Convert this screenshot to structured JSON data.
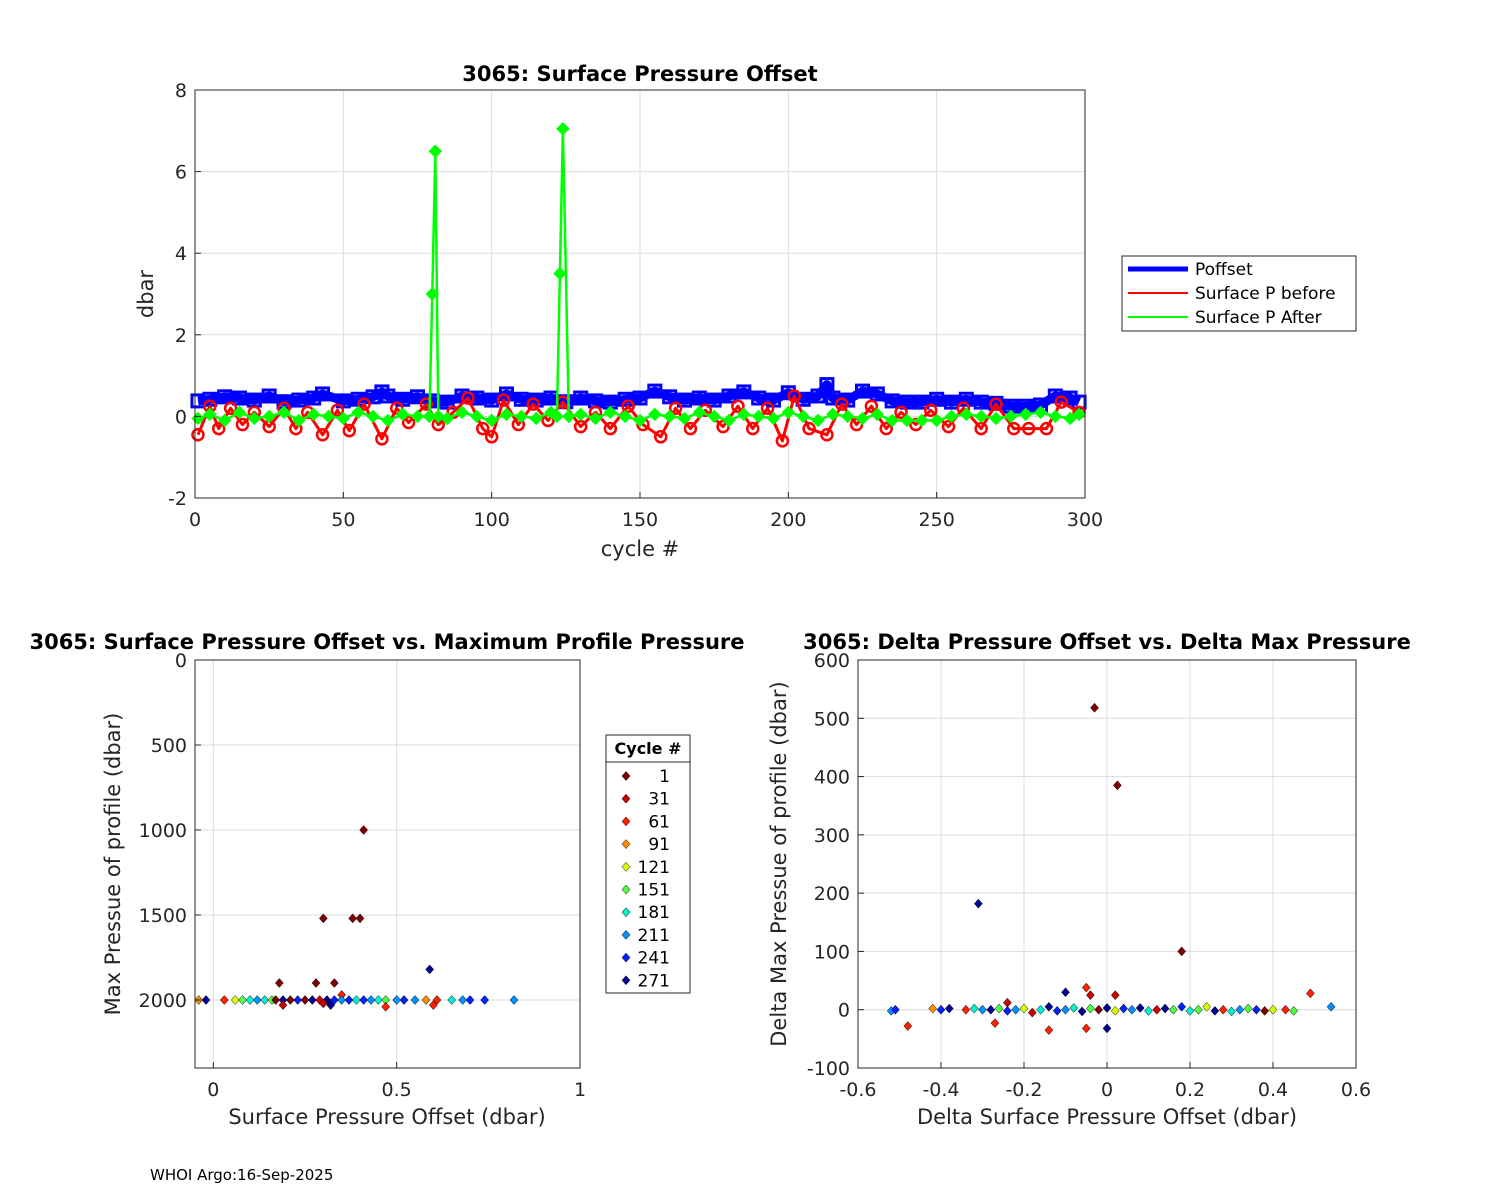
{
  "footer": "WHOI Argo:16-Sep-2025",
  "chart_data": [
    {
      "type": "line",
      "title": "3065: Surface Pressure Offset",
      "xlabel": "cycle #",
      "ylabel": "dbar",
      "xlim": [
        0,
        300
      ],
      "ylim": [
        -2,
        8
      ],
      "xticks": [
        "0",
        "50",
        "100",
        "150",
        "200",
        "250",
        "300"
      ],
      "yticks": [
        "-2",
        "0",
        "2",
        "4",
        "6",
        "8"
      ],
      "grid": true,
      "legend_position": "outside-right",
      "colors": {
        "poffset": "#0000ff",
        "before": "#ff0000",
        "after": "#00ff00"
      },
      "series": [
        {
          "name": "Poffset",
          "x": [
            1,
            5,
            10,
            15,
            20,
            25,
            30,
            35,
            40,
            43,
            50,
            55,
            60,
            63,
            65,
            70,
            75,
            80,
            85,
            90,
            95,
            100,
            105,
            110,
            115,
            120,
            125,
            130,
            135,
            140,
            145,
            150,
            155,
            160,
            165,
            170,
            175,
            180,
            185,
            190,
            195,
            200,
            205,
            210,
            213,
            215,
            220,
            225,
            230,
            235,
            240,
            245,
            250,
            255,
            260,
            265,
            270,
            275,
            280,
            285,
            290,
            295,
            298
          ],
          "values": [
            0.38,
            0.42,
            0.48,
            0.45,
            0.4,
            0.5,
            0.36,
            0.4,
            0.45,
            0.55,
            0.38,
            0.42,
            0.48,
            0.6,
            0.5,
            0.42,
            0.48,
            0.38,
            0.35,
            0.5,
            0.45,
            0.4,
            0.55,
            0.42,
            0.4,
            0.45,
            0.36,
            0.45,
            0.38,
            0.35,
            0.42,
            0.45,
            0.62,
            0.48,
            0.4,
            0.45,
            0.4,
            0.5,
            0.6,
            0.45,
            0.4,
            0.58,
            0.42,
            0.5,
            0.78,
            0.45,
            0.4,
            0.62,
            0.55,
            0.38,
            0.35,
            0.35,
            0.42,
            0.35,
            0.42,
            0.35,
            0.32,
            0.25,
            0.25,
            0.28,
            0.5,
            0.45,
            0.35
          ]
        },
        {
          "name": "Surface P before",
          "x": [
            1,
            5,
            8,
            12,
            16,
            20,
            25,
            30,
            34,
            38,
            43,
            48,
            52,
            57,
            63,
            68,
            72,
            78,
            82,
            87,
            92,
            97,
            100,
            104,
            109,
            114,
            119,
            124,
            130,
            135,
            140,
            146,
            151,
            157,
            162,
            167,
            172,
            178,
            183,
            188,
            193,
            198,
            202,
            207,
            213,
            218,
            223,
            228,
            233,
            238,
            243,
            248,
            254,
            259,
            265,
            270,
            276,
            281,
            287,
            292,
            298
          ],
          "values": [
            -0.45,
            0.25,
            -0.3,
            0.2,
            -0.2,
            0.1,
            -0.25,
            0.2,
            -0.3,
            0.1,
            -0.45,
            0.15,
            -0.35,
            0.3,
            -0.55,
            0.2,
            -0.15,
            0.3,
            -0.2,
            0.1,
            0.45,
            -0.3,
            -0.5,
            0.4,
            -0.2,
            0.3,
            -0.1,
            0.35,
            -0.25,
            0.1,
            -0.3,
            0.25,
            -0.2,
            -0.5,
            0.2,
            -0.3,
            0.15,
            -0.25,
            0.25,
            -0.3,
            0.2,
            -0.6,
            0.5,
            -0.3,
            -0.45,
            0.3,
            -0.2,
            0.25,
            -0.3,
            0.1,
            -0.2,
            0.15,
            -0.25,
            0.2,
            -0.3,
            0.3,
            -0.3,
            -0.3,
            -0.3,
            0.35,
            0.1
          ]
        },
        {
          "name": "Surface P After",
          "x": [
            1,
            5,
            10,
            15,
            20,
            25,
            30,
            35,
            40,
            45,
            50,
            55,
            60,
            65,
            70,
            75,
            79,
            80,
            81,
            82,
            85,
            90,
            95,
            100,
            105,
            110,
            115,
            120,
            122,
            123,
            124,
            126,
            130,
            135,
            140,
            145,
            150,
            155,
            160,
            165,
            170,
            175,
            180,
            185,
            190,
            195,
            200,
            205,
            210,
            215,
            220,
            225,
            230,
            235,
            240,
            245,
            250,
            255,
            260,
            265,
            270,
            275,
            280,
            285,
            290,
            295,
            298
          ],
          "values": [
            -0.05,
            0.05,
            -0.1,
            0.1,
            -0.05,
            0.0,
            0.1,
            -0.1,
            0.05,
            0.0,
            -0.05,
            0.1,
            0.0,
            -0.1,
            0.05,
            0.0,
            0.0,
            3.0,
            6.5,
            0.0,
            -0.05,
            0.1,
            0.0,
            -0.1,
            0.05,
            0.0,
            -0.05,
            0.1,
            0.0,
            3.5,
            7.05,
            0.0,
            0.05,
            -0.05,
            0.1,
            0.0,
            -0.1,
            0.05,
            0.0,
            -0.05,
            0.1,
            0.0,
            -0.1,
            0.05,
            0.0,
            -0.05,
            0.1,
            0.0,
            -0.1,
            0.05,
            0.0,
            -0.05,
            0.05,
            -0.1,
            -0.1,
            -0.1,
            -0.1,
            0.0,
            0.05,
            0.0,
            -0.05,
            0.0,
            0.05,
            0.1,
            0.0,
            -0.05,
            0.05
          ]
        }
      ]
    },
    {
      "type": "scatter",
      "title": "3065: Surface Pressure Offset vs. Maximum Profile Pressure",
      "xlabel": "Surface Pressure Offset (dbar)",
      "ylabel": "Max Pressue of profile (dbar)",
      "xlim": [
        -0.05,
        1
      ],
      "ylim": [
        0,
        2400
      ],
      "y_reversed": true,
      "xticks": [
        "0",
        "0.5",
        "1"
      ],
      "yticks": [
        "0",
        "500",
        "1000",
        "1500",
        "2000"
      ],
      "grid": true,
      "legend_title": "Cycle #",
      "legend_position": "outside-right",
      "legend": [
        {
          "label": "1",
          "color": "#800000"
        },
        {
          "label": "31",
          "color": "#cc0000"
        },
        {
          "label": "61",
          "color": "#ff2000"
        },
        {
          "label": "91",
          "color": "#ff8c00"
        },
        {
          "label": "121",
          "color": "#d8ff00"
        },
        {
          "label": "151",
          "color": "#50ff40"
        },
        {
          "label": "181",
          "color": "#00f0d0"
        },
        {
          "label": "211",
          "color": "#0090ff"
        },
        {
          "label": "241",
          "color": "#0020ff"
        },
        {
          "label": "271",
          "color": "#000090"
        }
      ],
      "points": [
        {
          "x": 0.41,
          "y": 1000,
          "c": 0
        },
        {
          "x": 0.3,
          "y": 1520,
          "c": 0
        },
        {
          "x": 0.38,
          "y": 1520,
          "c": 0
        },
        {
          "x": 0.4,
          "y": 1520,
          "c": 0
        },
        {
          "x": 0.18,
          "y": 1900,
          "c": 0
        },
        {
          "x": 0.28,
          "y": 1900,
          "c": 0
        },
        {
          "x": 0.33,
          "y": 1900,
          "c": 0
        },
        {
          "x": 0.59,
          "y": 1820,
          "c": 9
        },
        {
          "x": 0.35,
          "y": 1970,
          "c": 2
        },
        {
          "x": -0.04,
          "y": 2000,
          "c": 3
        },
        {
          "x": -0.02,
          "y": 2000,
          "c": 9
        },
        {
          "x": 0.03,
          "y": 2000,
          "c": 2
        },
        {
          "x": 0.06,
          "y": 2000,
          "c": 4
        },
        {
          "x": 0.08,
          "y": 2000,
          "c": 5
        },
        {
          "x": 0.1,
          "y": 2000,
          "c": 6
        },
        {
          "x": 0.12,
          "y": 2000,
          "c": 7
        },
        {
          "x": 0.14,
          "y": 2000,
          "c": 6
        },
        {
          "x": 0.16,
          "y": 2000,
          "c": 5
        },
        {
          "x": 0.17,
          "y": 2000,
          "c": 0
        },
        {
          "x": 0.19,
          "y": 2000,
          "c": 9
        },
        {
          "x": 0.21,
          "y": 2000,
          "c": 0
        },
        {
          "x": 0.23,
          "y": 2000,
          "c": 8
        },
        {
          "x": 0.25,
          "y": 2000,
          "c": 0
        },
        {
          "x": 0.27,
          "y": 2000,
          "c": 9
        },
        {
          "x": 0.29,
          "y": 2000,
          "c": 1
        },
        {
          "x": 0.31,
          "y": 2000,
          "c": 9
        },
        {
          "x": 0.33,
          "y": 2000,
          "c": 8
        },
        {
          "x": 0.35,
          "y": 2000,
          "c": 7
        },
        {
          "x": 0.37,
          "y": 2000,
          "c": 8
        },
        {
          "x": 0.39,
          "y": 2000,
          "c": 6
        },
        {
          "x": 0.41,
          "y": 2000,
          "c": 8
        },
        {
          "x": 0.43,
          "y": 2000,
          "c": 7
        },
        {
          "x": 0.45,
          "y": 2000,
          "c": 6
        },
        {
          "x": 0.47,
          "y": 2000,
          "c": 5
        },
        {
          "x": 0.5,
          "y": 2000,
          "c": 7
        },
        {
          "x": 0.52,
          "y": 2000,
          "c": 8
        },
        {
          "x": 0.55,
          "y": 2000,
          "c": 7
        },
        {
          "x": 0.58,
          "y": 2000,
          "c": 3
        },
        {
          "x": 0.61,
          "y": 2000,
          "c": 2
        },
        {
          "x": 0.65,
          "y": 2000,
          "c": 6
        },
        {
          "x": 0.68,
          "y": 2000,
          "c": 7
        },
        {
          "x": 0.7,
          "y": 2000,
          "c": 8
        },
        {
          "x": 0.74,
          "y": 2000,
          "c": 8
        },
        {
          "x": 0.82,
          "y": 2000,
          "c": 7
        },
        {
          "x": 0.19,
          "y": 2030,
          "c": 1
        },
        {
          "x": 0.32,
          "y": 2030,
          "c": 9
        },
        {
          "x": 0.47,
          "y": 2040,
          "c": 2
        },
        {
          "x": 0.6,
          "y": 2030,
          "c": 2
        },
        {
          "x": 0.3,
          "y": 2020,
          "c": 1
        }
      ]
    },
    {
      "type": "scatter",
      "title": "3065: Delta Pressure Offset vs. Delta Max Pressure",
      "xlabel": "Delta Surface Pressure Offset (dbar)",
      "ylabel": "Delta Max Pressue of profile (dbar)",
      "xlim": [
        -0.6,
        0.6
      ],
      "ylim": [
        -100,
        600
      ],
      "xticks": [
        "-0.6",
        "-0.4",
        "-0.2",
        "0",
        "0.2",
        "0.4",
        "0.6"
      ],
      "yticks": [
        "-100",
        "0",
        "100",
        "200",
        "300",
        "400",
        "500",
        "600"
      ],
      "grid": true,
      "points": [
        {
          "x": -0.03,
          "y": 518,
          "c": 0
        },
        {
          "x": 0.025,
          "y": 385,
          "c": 0
        },
        {
          "x": -0.31,
          "y": 182,
          "c": 9
        },
        {
          "x": 0.18,
          "y": 100,
          "c": 0
        },
        {
          "x": 0.49,
          "y": 28,
          "c": 2
        },
        {
          "x": -0.48,
          "y": -28,
          "c": 2
        },
        {
          "x": -0.27,
          "y": -23,
          "c": 2
        },
        {
          "x": -0.14,
          "y": -35,
          "c": 2
        },
        {
          "x": -0.05,
          "y": -32,
          "c": 2
        },
        {
          "x": 0.0,
          "y": -32,
          "c": 9
        },
        {
          "x": -0.1,
          "y": 30,
          "c": 9
        },
        {
          "x": -0.05,
          "y": 38,
          "c": 2
        },
        {
          "x": 0.02,
          "y": 25,
          "c": 1
        },
        {
          "x": -0.04,
          "y": 25,
          "c": 1
        },
        {
          "x": -0.24,
          "y": 12,
          "c": 1
        },
        {
          "x": 0.54,
          "y": 5,
          "c": 7
        },
        {
          "x": -0.52,
          "y": -2,
          "c": 7
        },
        {
          "x": -0.51,
          "y": 0,
          "c": 8
        },
        {
          "x": -0.42,
          "y": 2,
          "c": 3
        },
        {
          "x": -0.4,
          "y": 0,
          "c": 8
        },
        {
          "x": -0.38,
          "y": 2,
          "c": 9
        },
        {
          "x": -0.34,
          "y": 0,
          "c": 2
        },
        {
          "x": -0.32,
          "y": 2,
          "c": 6
        },
        {
          "x": -0.3,
          "y": 0,
          "c": 7
        },
        {
          "x": -0.28,
          "y": 0,
          "c": 9
        },
        {
          "x": -0.26,
          "y": 2,
          "c": 5
        },
        {
          "x": -0.24,
          "y": -2,
          "c": 8
        },
        {
          "x": -0.22,
          "y": 0,
          "c": 7
        },
        {
          "x": -0.2,
          "y": 2,
          "c": 4
        },
        {
          "x": -0.18,
          "y": -5,
          "c": 1
        },
        {
          "x": -0.16,
          "y": 0,
          "c": 6
        },
        {
          "x": -0.14,
          "y": 5,
          "c": 9
        },
        {
          "x": -0.12,
          "y": -2,
          "c": 8
        },
        {
          "x": -0.1,
          "y": 0,
          "c": 7
        },
        {
          "x": -0.08,
          "y": 3,
          "c": 6
        },
        {
          "x": -0.06,
          "y": -3,
          "c": 9
        },
        {
          "x": -0.04,
          "y": 2,
          "c": 5
        },
        {
          "x": -0.02,
          "y": 0,
          "c": 0
        },
        {
          "x": 0.0,
          "y": 3,
          "c": 9
        },
        {
          "x": 0.02,
          "y": -2,
          "c": 4
        },
        {
          "x": 0.04,
          "y": 2,
          "c": 8
        },
        {
          "x": 0.06,
          "y": 0,
          "c": 7
        },
        {
          "x": 0.08,
          "y": 3,
          "c": 9
        },
        {
          "x": 0.1,
          "y": -2,
          "c": 6
        },
        {
          "x": 0.12,
          "y": 0,
          "c": 1
        },
        {
          "x": 0.14,
          "y": 2,
          "c": 9
        },
        {
          "x": 0.16,
          "y": 0,
          "c": 5
        },
        {
          "x": 0.18,
          "y": 5,
          "c": 8
        },
        {
          "x": 0.2,
          "y": -2,
          "c": 6
        },
        {
          "x": 0.22,
          "y": 0,
          "c": 5
        },
        {
          "x": 0.24,
          "y": 5,
          "c": 4
        },
        {
          "x": 0.26,
          "y": -2,
          "c": 9
        },
        {
          "x": 0.28,
          "y": 0,
          "c": 2
        },
        {
          "x": 0.3,
          "y": -3,
          "c": 6
        },
        {
          "x": 0.32,
          "y": 0,
          "c": 7
        },
        {
          "x": 0.34,
          "y": 2,
          "c": 5
        },
        {
          "x": 0.36,
          "y": 0,
          "c": 8
        },
        {
          "x": 0.38,
          "y": -2,
          "c": 0
        },
        {
          "x": 0.4,
          "y": 0,
          "c": 4
        },
        {
          "x": 0.43,
          "y": 0,
          "c": 2
        },
        {
          "x": 0.45,
          "y": -2,
          "c": 5
        }
      ]
    }
  ]
}
